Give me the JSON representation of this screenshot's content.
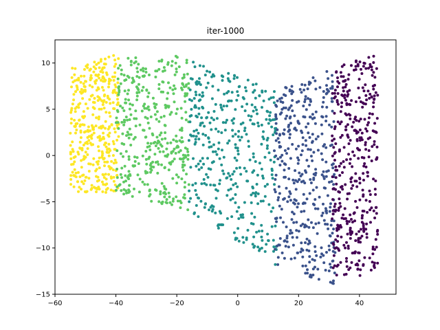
{
  "chart_data": {
    "type": "scatter",
    "title": "iter-1000",
    "xlabel": "",
    "ylabel": "",
    "xlim": [
      -60,
      52
    ],
    "ylim": [
      -15,
      12.5
    ],
    "xticks": [
      -60,
      -40,
      -20,
      0,
      20,
      40
    ],
    "yticks": [
      -15,
      -10,
      -5,
      0,
      5,
      10
    ],
    "grid": false,
    "legend": "none",
    "point_count": 2000,
    "color_scale": "viridis",
    "series": [
      {
        "color": "#fde725",
        "region": {
          "x": [
            -55,
            -39
          ],
          "y_bottom_left": -4,
          "y_bottom_right": -4,
          "y_top_left": 9.5,
          "y_top_right": 11
        }
      },
      {
        "color": "#5ec962",
        "region": {
          "x": [
            -40,
            -16
          ],
          "y_bottom_left": -4,
          "y_bottom_right": -6,
          "y_top_left": 10.5,
          "y_top_right": 11
        }
      },
      {
        "color": "#21918c",
        "region": {
          "x": [
            -16,
            13
          ],
          "y_bottom_left": -6,
          "y_bottom_right": -12,
          "y_top_left": 10.5,
          "y_top_right": 7
        }
      },
      {
        "color": "#3b528b",
        "region": {
          "x": [
            12,
            32
          ],
          "y_bottom_left": -12,
          "y_bottom_right": -14,
          "y_top_left": 7,
          "y_top_right": 9.5
        }
      },
      {
        "color": "#440154",
        "region": {
          "x": [
            31,
            46
          ],
          "y_bottom_left": -13,
          "y_bottom_right": -13,
          "y_top_left": 9.5,
          "y_top_right": 11
        }
      }
    ]
  }
}
